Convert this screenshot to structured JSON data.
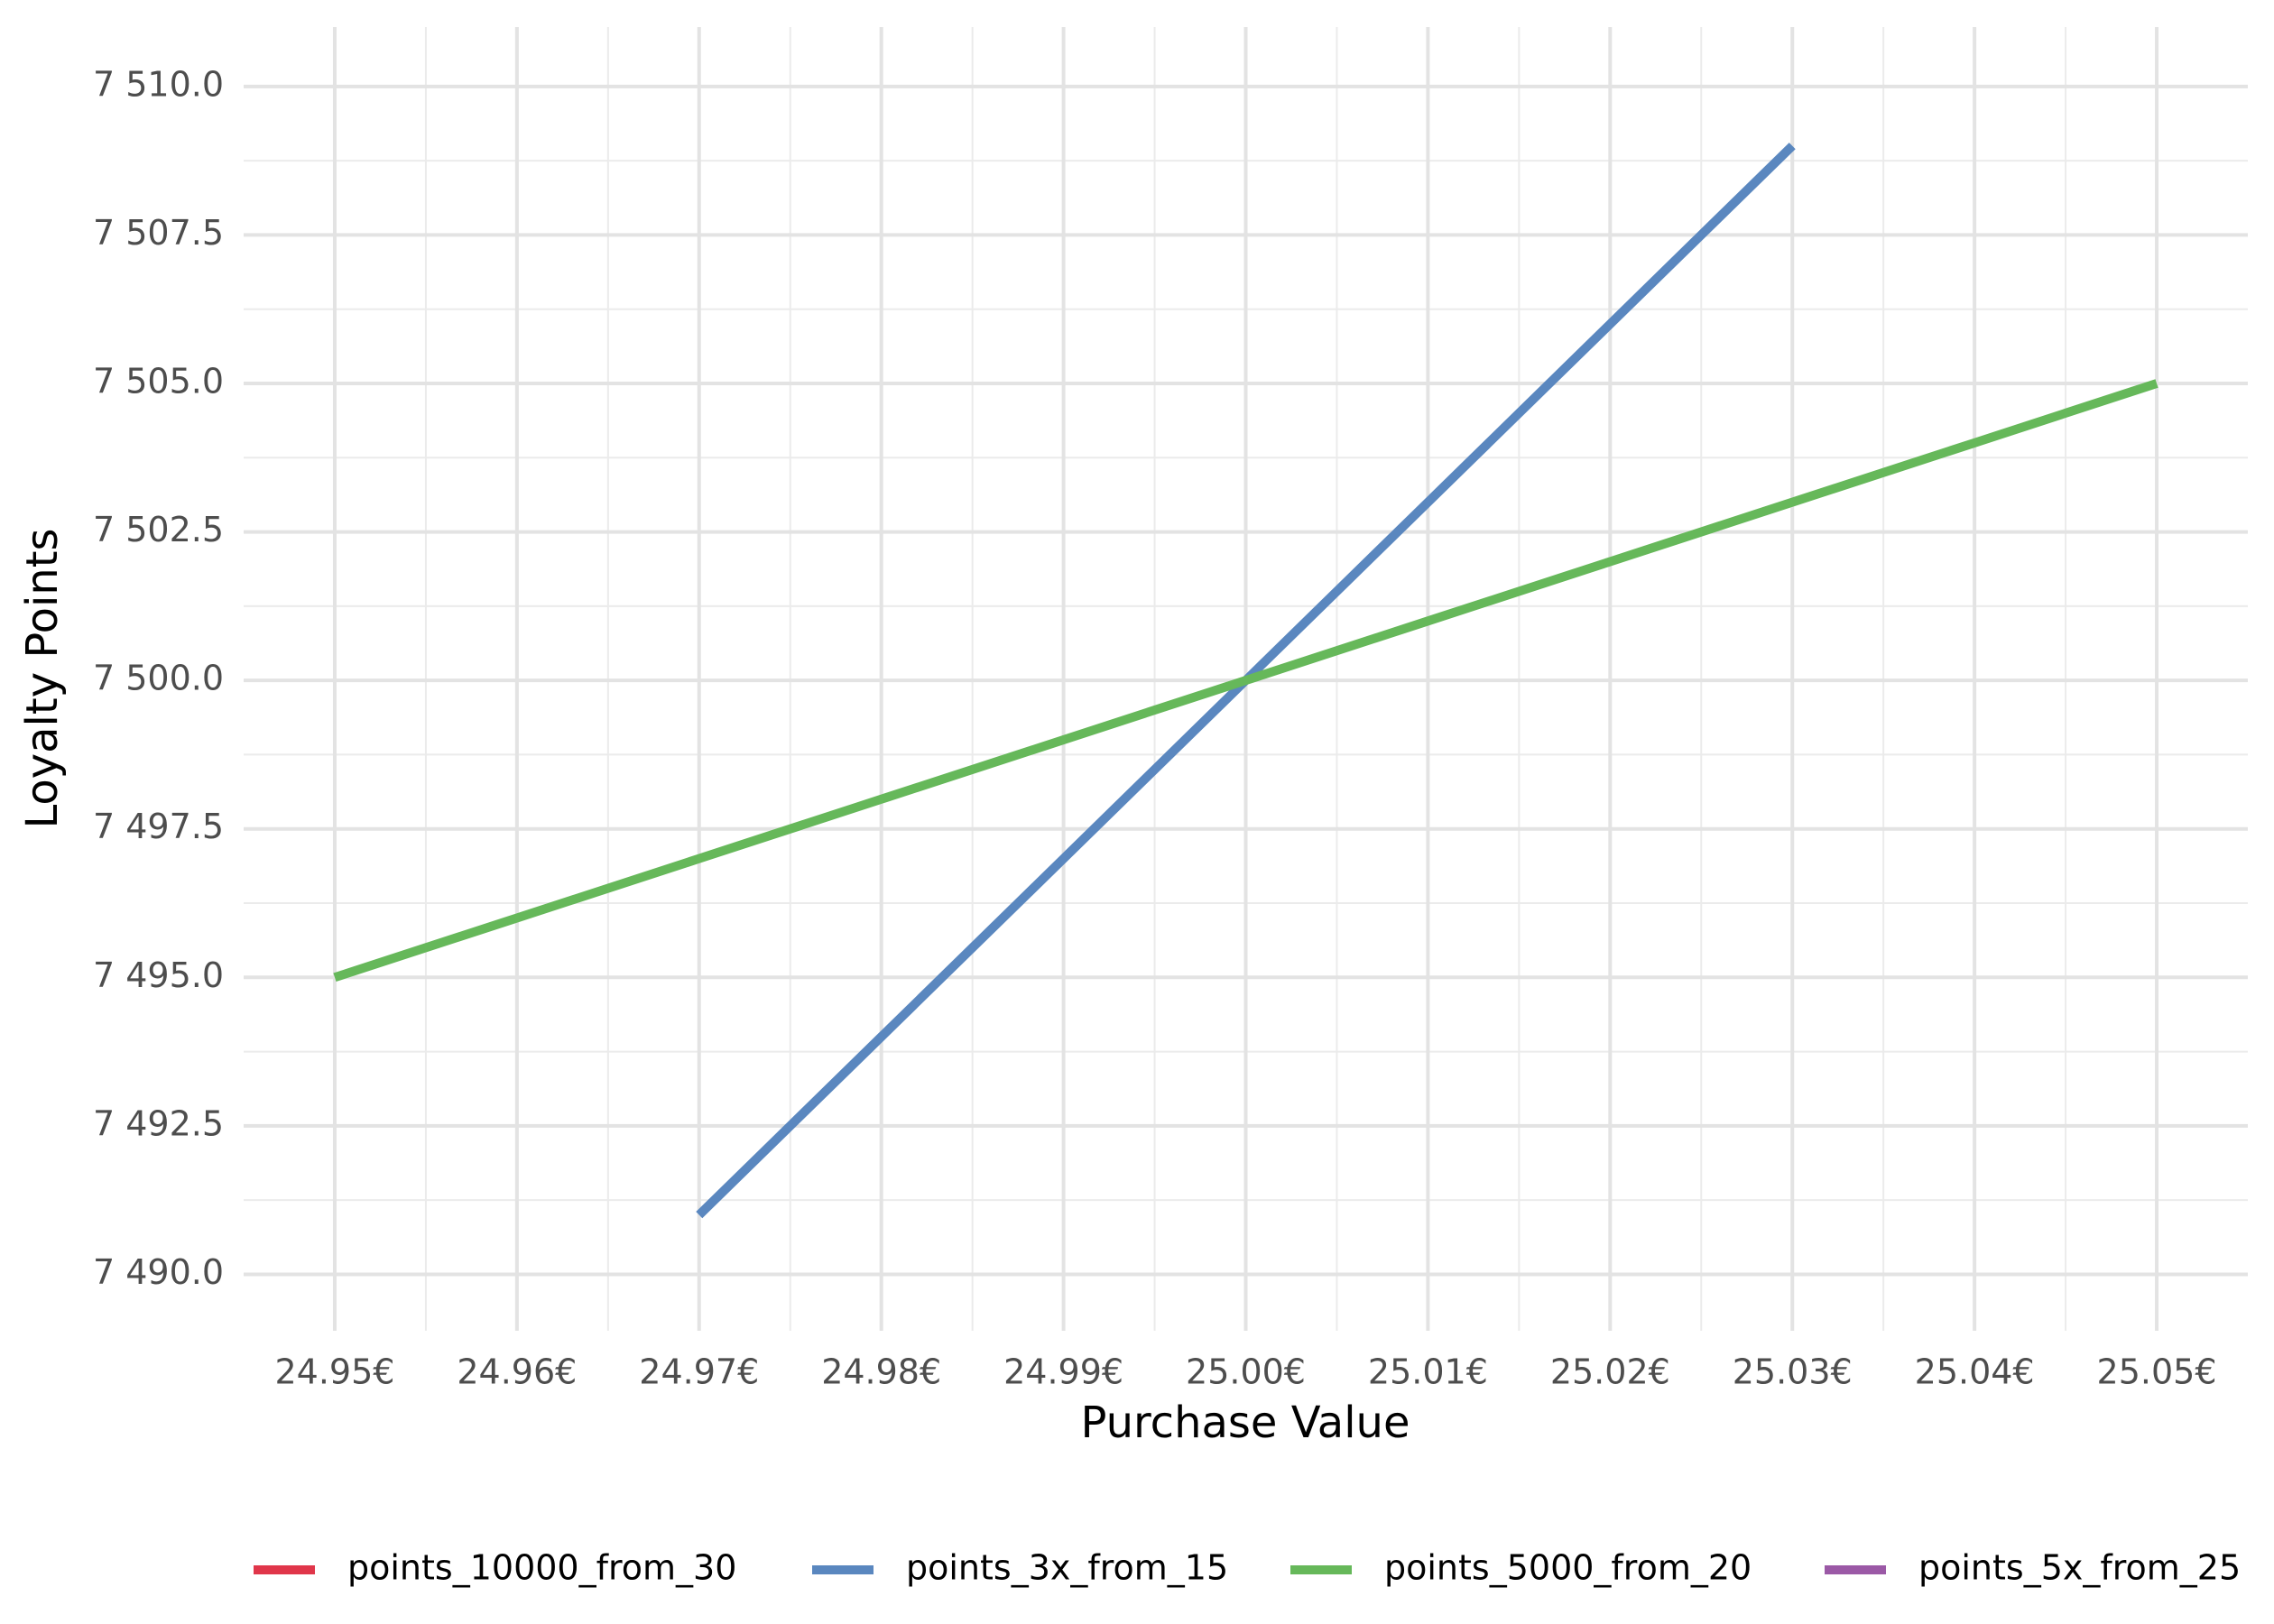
{
  "chart_data": {
    "type": "line",
    "x_label": "Purchase Value",
    "y_label": "Loyalty Points",
    "x": [
      24.95,
      24.96,
      24.97,
      24.98,
      24.99,
      25.0,
      25.01,
      25.02,
      25.03,
      25.04,
      25.05
    ],
    "series": [
      {
        "name": "points_10000_from_30",
        "color": "#e0364a",
        "values": [
          null,
          null,
          null,
          null,
          null,
          null,
          null,
          null,
          null,
          null,
          null
        ]
      },
      {
        "name": "points_3x_from_15",
        "color": "#5a87bf",
        "values": [
          null,
          null,
          7491,
          7494,
          7497,
          7500,
          7503,
          7506,
          7509,
          null,
          null
        ]
      },
      {
        "name": "points_5000_from_20",
        "color": "#66b85a",
        "values": [
          7495,
          7496,
          7497,
          7498,
          7499,
          7500,
          7501,
          7502,
          7503,
          7504,
          7505
        ]
      },
      {
        "name": "points_5x_from_25",
        "color": "#9b59a6",
        "values": [
          null,
          null,
          null,
          null,
          null,
          null,
          null,
          null,
          null,
          null,
          null
        ]
      }
    ],
    "xlim": [
      24.945,
      25.055
    ],
    "ylim": [
      7489.05,
      7511
    ],
    "xticks": [
      {
        "value": 24.95,
        "label": "24.95€"
      },
      {
        "value": 24.96,
        "label": "24.96€"
      },
      {
        "value": 24.97,
        "label": "24.97€"
      },
      {
        "value": 24.98,
        "label": "24.98€"
      },
      {
        "value": 24.99,
        "label": "24.99€"
      },
      {
        "value": 25.0,
        "label": "25.00€"
      },
      {
        "value": 25.01,
        "label": "25.01€"
      },
      {
        "value": 25.02,
        "label": "25.02€"
      },
      {
        "value": 25.03,
        "label": "25.03€"
      },
      {
        "value": 25.04,
        "label": "25.04€"
      },
      {
        "value": 25.05,
        "label": "25.05€"
      }
    ],
    "yticks": [
      {
        "value": 7490,
        "label": "7 490.0"
      },
      {
        "value": 7492.5,
        "label": "7 492.5"
      },
      {
        "value": 7495,
        "label": "7 495.0"
      },
      {
        "value": 7497.5,
        "label": "7 497.5"
      },
      {
        "value": 7500,
        "label": "7 500.0"
      },
      {
        "value": 7502.5,
        "label": "7 502.5"
      },
      {
        "value": 7505,
        "label": "7 505.0"
      },
      {
        "value": 7507.5,
        "label": "7 507.5"
      },
      {
        "value": 7510,
        "label": "7 510.0"
      }
    ],
    "grid": true,
    "legend_position": "bottom"
  }
}
